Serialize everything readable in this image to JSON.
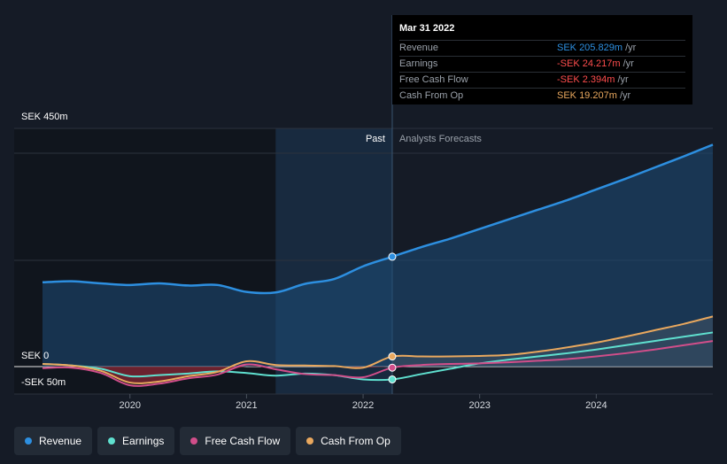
{
  "chart_data": {
    "type": "line",
    "currency": "SEK",
    "y_unit": "m",
    "ylim": [
      -50,
      450
    ],
    "y_tick_labels": [
      "SEK 450m",
      "SEK 0",
      "-SEK 50m"
    ],
    "x_tick_labels": [
      "2020",
      "2021",
      "2022",
      "2023",
      "2024"
    ],
    "x_ticks": [
      2020,
      2021,
      2022,
      2023,
      2024
    ],
    "xlim": [
      2019.25,
      2025.0
    ],
    "past_label": "Past",
    "forecast_label": "Analysts Forecasts",
    "past_region_start": 2021.25,
    "divider_x": 2022.25,
    "series": [
      {
        "name": "Revenue",
        "color": "#2d8fe0",
        "x": [
          2019.25,
          2019.5,
          2019.75,
          2020.0,
          2020.25,
          2020.5,
          2020.75,
          2021.0,
          2021.25,
          2021.5,
          2021.75,
          2022.0,
          2022.25,
          2022.5,
          2022.75,
          2023.0,
          2023.25,
          2023.5,
          2023.75,
          2024.0,
          2024.25,
          2024.5,
          2024.75,
          2025.0
        ],
        "values": [
          158,
          160,
          156,
          153,
          156,
          152,
          153,
          140,
          139,
          155,
          164,
          188,
          206,
          224,
          240,
          258,
          276,
          294,
          312,
          332,
          352,
          373,
          394,
          416
        ]
      },
      {
        "name": "Earnings",
        "color": "#5fe0cf",
        "x": [
          2019.25,
          2019.5,
          2019.75,
          2020.0,
          2020.25,
          2020.5,
          2020.75,
          2021.0,
          2021.25,
          2021.5,
          2021.75,
          2022.0,
          2022.25,
          2022.5,
          2022.75,
          2023.0,
          2023.25,
          2023.5,
          2023.75,
          2024.0,
          2024.25,
          2024.5,
          2024.75,
          2025.0
        ],
        "values": [
          5,
          2,
          -4,
          -18,
          -16,
          -13,
          -9,
          -12,
          -17,
          -13,
          -16,
          -24,
          -24,
          -14,
          -4,
          6,
          13,
          19,
          25,
          32,
          40,
          48,
          56,
          64
        ]
      },
      {
        "name": "Free Cash Flow",
        "color": "#d14e8a",
        "x": [
          2019.25,
          2019.5,
          2019.75,
          2020.0,
          2020.25,
          2020.5,
          2020.75,
          2021.0,
          2021.25,
          2021.5,
          2021.75,
          2022.0,
          2022.25,
          2022.5,
          2022.75,
          2023.0,
          2023.25,
          2023.5,
          2023.75,
          2024.0,
          2024.25,
          2024.5,
          2024.75,
          2025.0
        ],
        "values": [
          -3,
          -2,
          -12,
          -35,
          -32,
          -22,
          -15,
          4,
          -5,
          -14,
          -16,
          -20,
          -2,
          3,
          5,
          6,
          8,
          11,
          14,
          19,
          25,
          32,
          40,
          48
        ]
      },
      {
        "name": "Cash From Op",
        "color": "#e9a85e",
        "x": [
          2019.25,
          2019.5,
          2019.75,
          2020.0,
          2020.25,
          2020.5,
          2020.75,
          2021.0,
          2021.25,
          2021.5,
          2021.75,
          2022.0,
          2022.25,
          2022.5,
          2022.75,
          2023.0,
          2023.25,
          2023.5,
          2023.75,
          2024.0,
          2024.25,
          2024.5,
          2024.75,
          2025.0
        ],
        "values": [
          5,
          2,
          -8,
          -30,
          -28,
          -18,
          -10,
          10,
          3,
          2,
          1,
          -2,
          19,
          19,
          19,
          20,
          22,
          28,
          36,
          45,
          56,
          68,
          80,
          94
        ]
      }
    ]
  },
  "tooltip": {
    "date": "Mar 31 2022",
    "rows": [
      {
        "label": "Revenue",
        "value": "SEK 205.829m",
        "unit": "/yr",
        "color": "#2d8fe0"
      },
      {
        "label": "Earnings",
        "value": "-SEK 24.217m",
        "unit": "/yr",
        "color": "#ff4d4d"
      },
      {
        "label": "Free Cash Flow",
        "value": "-SEK 2.394m",
        "unit": "/yr",
        "color": "#ff4d4d"
      },
      {
        "label": "Cash From Op",
        "value": "SEK 19.207m",
        "unit": "/yr",
        "color": "#e9a85e"
      }
    ]
  },
  "legend": [
    {
      "label": "Revenue",
      "color": "#2d8fe0"
    },
    {
      "label": "Earnings",
      "color": "#5fe0cf"
    },
    {
      "label": "Free Cash Flow",
      "color": "#d14e8a"
    },
    {
      "label": "Cash From Op",
      "color": "#e9a85e"
    }
  ]
}
